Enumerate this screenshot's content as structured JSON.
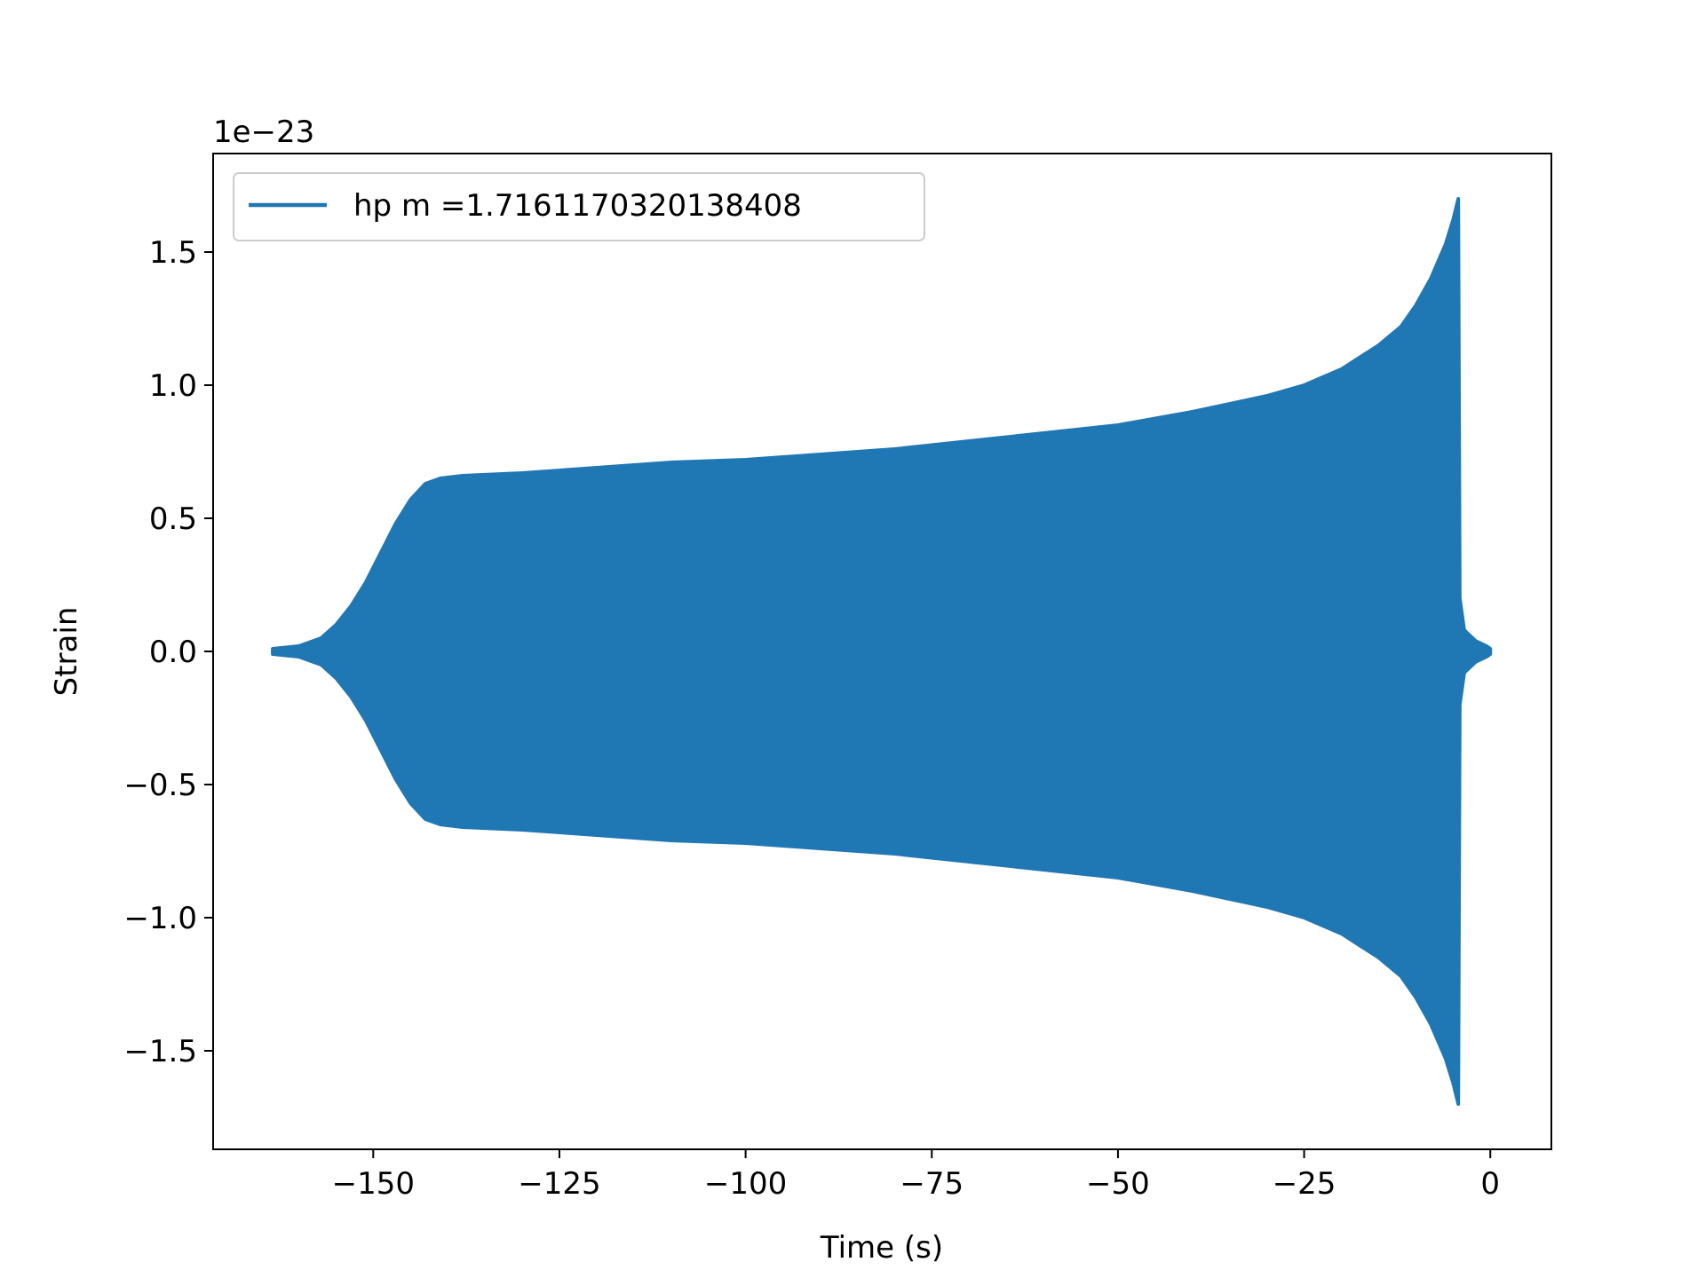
{
  "chart_data": {
    "type": "line",
    "xlabel": "Time (s)",
    "ylabel": "Strain",
    "y_offset_text": "1e−23",
    "y_multiplier": "1e-23",
    "xlim": [
      -171.5,
      8.2
    ],
    "ylim": [
      -1.87,
      1.87
    ],
    "xticks": [
      -150,
      -125,
      -100,
      -75,
      -50,
      -25,
      0
    ],
    "xtick_labels": [
      "−150",
      "−125",
      "−100",
      "−75",
      "−50",
      "−25",
      "0"
    ],
    "yticks": [
      -1.5,
      -1.0,
      -0.5,
      0.0,
      0.5,
      1.0,
      1.5
    ],
    "ytick_labels": [
      "−1.5",
      "−1.0",
      "−0.5",
      "0.0",
      "0.5",
      "1.0",
      "1.5"
    ],
    "grid": false,
    "legend_position": "upper-left",
    "series": [
      {
        "name": "hp m =1.7161170320138408",
        "color": "#1f77b4",
        "envelope_upper": [
          [
            -163.5,
            0.01
          ],
          [
            -160,
            0.02
          ],
          [
            -157,
            0.05
          ],
          [
            -155,
            0.1
          ],
          [
            -153,
            0.17
          ],
          [
            -151,
            0.26
          ],
          [
            -149,
            0.37
          ],
          [
            -147,
            0.48
          ],
          [
            -145,
            0.57
          ],
          [
            -143,
            0.63
          ],
          [
            -141,
            0.65
          ],
          [
            -138,
            0.66
          ],
          [
            -130,
            0.67
          ],
          [
            -120,
            0.69
          ],
          [
            -110,
            0.71
          ],
          [
            -100,
            0.72
          ],
          [
            -90,
            0.74
          ],
          [
            -80,
            0.76
          ],
          [
            -70,
            0.79
          ],
          [
            -60,
            0.82
          ],
          [
            -50,
            0.85
          ],
          [
            -40,
            0.9
          ],
          [
            -30,
            0.96
          ],
          [
            -25,
            1.0
          ],
          [
            -20,
            1.06
          ],
          [
            -15,
            1.15
          ],
          [
            -12,
            1.22
          ],
          [
            -10,
            1.3
          ],
          [
            -8,
            1.4
          ],
          [
            -6,
            1.53
          ],
          [
            -5,
            1.62
          ],
          [
            -4.3,
            1.7
          ],
          [
            -4.1,
            0.2
          ],
          [
            -3.5,
            0.08
          ],
          [
            -2,
            0.04
          ],
          [
            -0.5,
            0.02
          ],
          [
            0,
            0.01
          ]
        ],
        "envelope_lower": [
          [
            -163.5,
            -0.01
          ],
          [
            -160,
            -0.02
          ],
          [
            -157,
            -0.05
          ],
          [
            -155,
            -0.1
          ],
          [
            -153,
            -0.17
          ],
          [
            -151,
            -0.26
          ],
          [
            -149,
            -0.37
          ],
          [
            -147,
            -0.48
          ],
          [
            -145,
            -0.57
          ],
          [
            -143,
            -0.63
          ],
          [
            -141,
            -0.65
          ],
          [
            -138,
            -0.66
          ],
          [
            -130,
            -0.67
          ],
          [
            -120,
            -0.69
          ],
          [
            -110,
            -0.71
          ],
          [
            -100,
            -0.72
          ],
          [
            -90,
            -0.74
          ],
          [
            -80,
            -0.76
          ],
          [
            -70,
            -0.79
          ],
          [
            -60,
            -0.82
          ],
          [
            -50,
            -0.85
          ],
          [
            -40,
            -0.9
          ],
          [
            -30,
            -0.96
          ],
          [
            -25,
            -1.0
          ],
          [
            -20,
            -1.06
          ],
          [
            -15,
            -1.15
          ],
          [
            -12,
            -1.22
          ],
          [
            -10,
            -1.3
          ],
          [
            -8,
            -1.4
          ],
          [
            -6,
            -1.53
          ],
          [
            -5,
            -1.62
          ],
          [
            -4.3,
            -1.7
          ],
          [
            -4.1,
            -0.2
          ],
          [
            -3.5,
            -0.08
          ],
          [
            -2,
            -0.04
          ],
          [
            -0.5,
            -0.02
          ],
          [
            0,
            -0.01
          ]
        ]
      }
    ]
  }
}
